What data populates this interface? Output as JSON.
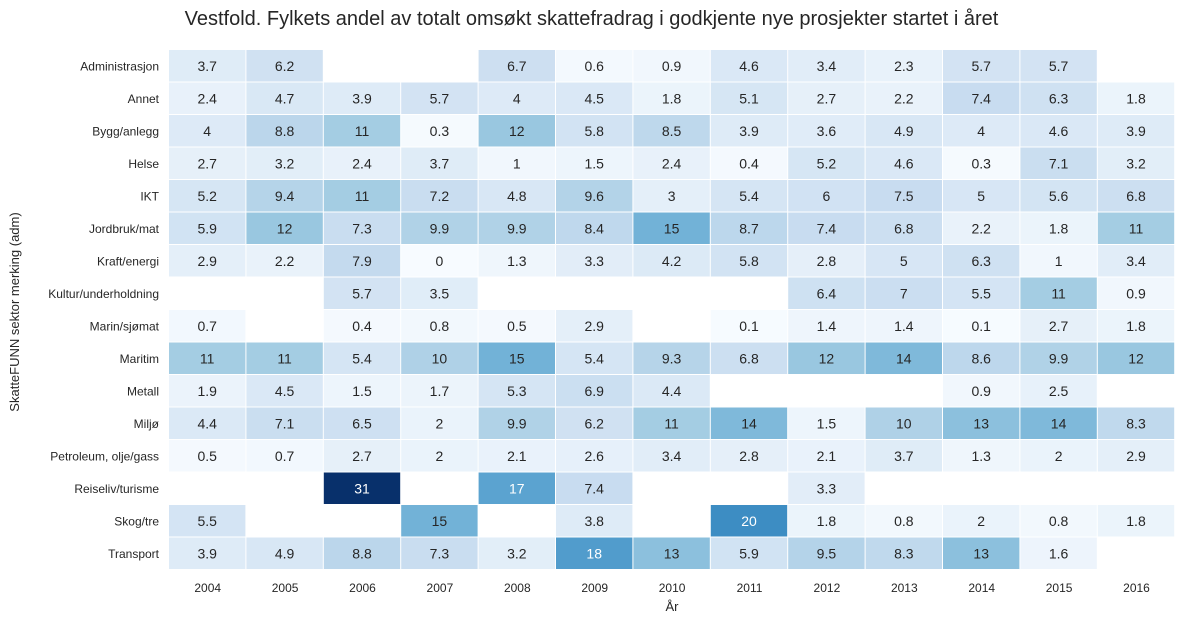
{
  "chart_data": {
    "type": "heatmap",
    "title": "Vestfold. Fylkets andel av totalt omsøkt skattefradrag i godkjente nye prosjekter startet i året",
    "xlabel": "År",
    "ylabel": "SkatteFUNN sektor merking (adm)",
    "x": [
      "2004",
      "2005",
      "2006",
      "2007",
      "2008",
      "2009",
      "2010",
      "2011",
      "2012",
      "2013",
      "2014",
      "2015",
      "2016"
    ],
    "y": [
      "Administrasjon",
      "Annet",
      "Bygg/anlegg",
      "Helse",
      "IKT",
      "Jordbruk/mat",
      "Kraft/energi",
      "Kultur/underholdning",
      "Marin/sjømat",
      "Maritim",
      "Metall",
      "Miljø",
      "Petroleum, olje/gass",
      "Reiseliv/turisme",
      "Skog/tre",
      "Transport"
    ],
    "values": [
      [
        3.7,
        6.2,
        null,
        null,
        6.7,
        0.6,
        0.9,
        4.6,
        3.4,
        2.3,
        5.7,
        5.7,
        null
      ],
      [
        2.4,
        4.7,
        3.9,
        5.7,
        4,
        4.5,
        1.8,
        5.1,
        2.7,
        2.2,
        7.4,
        6.3,
        1.8
      ],
      [
        4,
        8.8,
        11,
        0.3,
        12,
        5.8,
        8.5,
        3.9,
        3.6,
        4.9,
        4,
        4.6,
        3.9
      ],
      [
        2.7,
        3.2,
        2.4,
        3.7,
        1,
        1.5,
        2.4,
        0.4,
        5.2,
        4.6,
        0.3,
        7.1,
        3.2
      ],
      [
        5.2,
        9.4,
        11,
        7.2,
        4.8,
        9.6,
        3,
        5.4,
        6,
        7.5,
        5,
        5.6,
        6.8
      ],
      [
        5.9,
        12,
        7.3,
        9.9,
        9.9,
        8.4,
        15,
        8.7,
        7.4,
        6.8,
        2.2,
        1.8,
        11
      ],
      [
        2.9,
        2.2,
        7.9,
        0,
        1.3,
        3.3,
        4.2,
        5.8,
        2.8,
        5,
        6.3,
        1,
        3.4
      ],
      [
        null,
        null,
        5.7,
        3.5,
        null,
        null,
        null,
        null,
        6.4,
        7,
        5.5,
        11,
        0.9
      ],
      [
        0.7,
        null,
        0.4,
        0.8,
        0.5,
        2.9,
        null,
        0.1,
        1.4,
        1.4,
        0.1,
        2.7,
        1.8
      ],
      [
        11,
        11,
        5.4,
        10,
        15,
        5.4,
        9.3,
        6.8,
        12,
        14,
        8.6,
        9.9,
        12
      ],
      [
        1.9,
        4.5,
        1.5,
        1.7,
        5.3,
        6.9,
        4.4,
        null,
        null,
        null,
        0.9,
        2.5,
        null
      ],
      [
        4.4,
        7.1,
        6.5,
        2,
        9.9,
        6.2,
        11,
        14,
        1.5,
        10,
        13,
        14,
        8.3
      ],
      [
        0.5,
        0.7,
        2.7,
        2,
        2.1,
        2.6,
        3.4,
        2.8,
        2.1,
        3.7,
        1.3,
        2,
        2.9
      ],
      [
        null,
        null,
        31,
        null,
        17,
        7.4,
        null,
        null,
        3.3,
        null,
        null,
        null,
        null
      ],
      [
        5.5,
        null,
        null,
        15,
        null,
        3.8,
        null,
        20,
        1.8,
        0.8,
        2,
        0.8,
        1.8
      ],
      [
        3.9,
        4.9,
        8.8,
        7.3,
        3.2,
        18,
        13,
        5.9,
        9.5,
        8.3,
        13,
        1.6,
        null
      ]
    ],
    "color_scale": "Blues",
    "color_range": [
      0,
      31
    ],
    "colorbar": false,
    "grid": false
  }
}
